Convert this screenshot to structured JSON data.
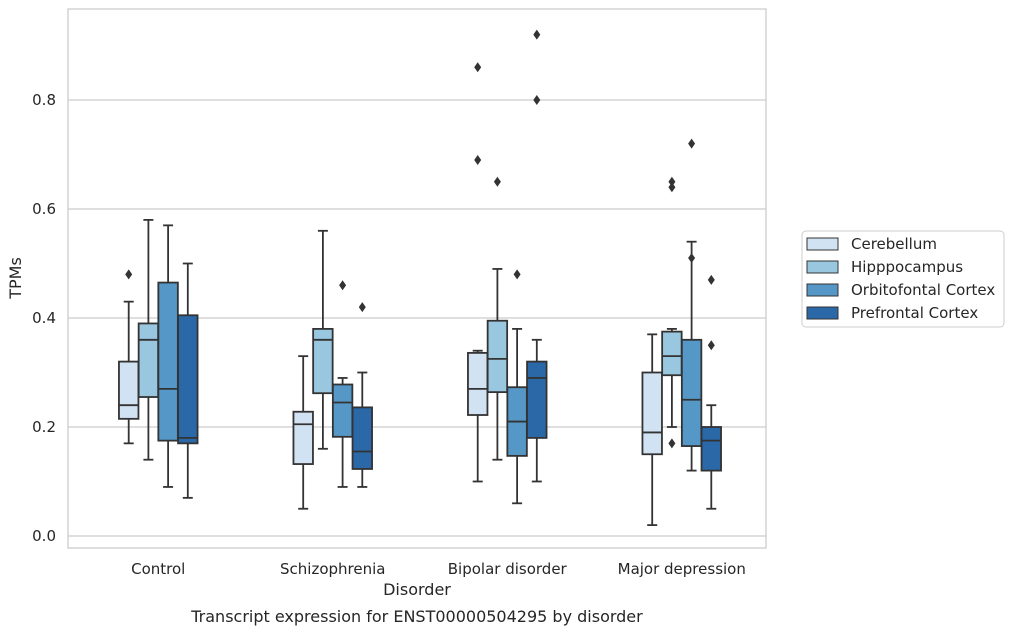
{
  "chart_data": {
    "type": "box",
    "xlabel": "Disorder",
    "ylabel": "TPMs",
    "caption": "Transcript expression for ENST00000504295 by disorder",
    "ylim": [
      -0.02,
      0.97
    ],
    "yticks": [
      "0.0",
      "0.2",
      "0.4",
      "0.6",
      "0.8"
    ],
    "grid": "horizontal",
    "legend_position": "right",
    "categories": [
      "Control",
      "Schizophrenia",
      "Bipolar disorder",
      "Major depression"
    ],
    "series": [
      {
        "name": "Cerebellum",
        "color": "#d1e2f2",
        "boxes": [
          {
            "whisker_low": 0.17,
            "q1": 0.215,
            "median": 0.24,
            "q3": 0.32,
            "whisker_high": 0.43,
            "outliers": [
              0.48
            ]
          },
          {
            "whisker_low": 0.05,
            "q1": 0.132,
            "median": 0.205,
            "q3": 0.228,
            "whisker_high": 0.33,
            "outliers": []
          },
          {
            "whisker_low": 0.1,
            "q1": 0.222,
            "median": 0.27,
            "q3": 0.336,
            "whisker_high": 0.34,
            "outliers": [
              0.69,
              0.86
            ]
          },
          {
            "whisker_low": 0.02,
            "q1": 0.15,
            "median": 0.19,
            "q3": 0.3,
            "whisker_high": 0.37,
            "outliers": []
          }
        ]
      },
      {
        "name": "Hipppocampus",
        "color": "#9ac7e0",
        "boxes": [
          {
            "whisker_low": 0.14,
            "q1": 0.255,
            "median": 0.36,
            "q3": 0.39,
            "whisker_high": 0.58,
            "outliers": []
          },
          {
            "whisker_low": 0.16,
            "q1": 0.262,
            "median": 0.36,
            "q3": 0.38,
            "whisker_high": 0.56,
            "outliers": []
          },
          {
            "whisker_low": 0.14,
            "q1": 0.264,
            "median": 0.325,
            "q3": 0.395,
            "whisker_high": 0.49,
            "outliers": [
              0.65
            ]
          },
          {
            "whisker_low": 0.2,
            "q1": 0.295,
            "median": 0.33,
            "q3": 0.375,
            "whisker_high": 0.38,
            "outliers": [
              0.17,
              0.64,
              0.65
            ]
          }
        ]
      },
      {
        "name": "Orbitofontal Cortex",
        "color": "#5597c6",
        "boxes": [
          {
            "whisker_low": 0.09,
            "q1": 0.175,
            "median": 0.27,
            "q3": 0.465,
            "whisker_high": 0.57,
            "outliers": []
          },
          {
            "whisker_low": 0.09,
            "q1": 0.182,
            "median": 0.245,
            "q3": 0.278,
            "whisker_high": 0.29,
            "outliers": [
              0.46
            ]
          },
          {
            "whisker_low": 0.06,
            "q1": 0.147,
            "median": 0.21,
            "q3": 0.273,
            "whisker_high": 0.38,
            "outliers": [
              0.48
            ]
          },
          {
            "whisker_low": 0.12,
            "q1": 0.165,
            "median": 0.25,
            "q3": 0.36,
            "whisker_high": 0.54,
            "outliers": [
              0.51,
              0.72
            ]
          }
        ]
      },
      {
        "name": "Prefrontal Cortex",
        "color": "#2b68a8",
        "boxes": [
          {
            "whisker_low": 0.07,
            "q1": 0.17,
            "median": 0.18,
            "q3": 0.405,
            "whisker_high": 0.5,
            "outliers": []
          },
          {
            "whisker_low": 0.09,
            "q1": 0.123,
            "median": 0.155,
            "q3": 0.236,
            "whisker_high": 0.3,
            "outliers": [
              0.42
            ]
          },
          {
            "whisker_low": 0.1,
            "q1": 0.18,
            "median": 0.29,
            "q3": 0.32,
            "whisker_high": 0.36,
            "outliers": [
              0.8,
              0.92
            ]
          },
          {
            "whisker_low": 0.05,
            "q1": 0.12,
            "median": 0.175,
            "q3": 0.2,
            "whisker_high": 0.24,
            "outliers": [
              0.35,
              0.47
            ]
          }
        ]
      }
    ]
  }
}
